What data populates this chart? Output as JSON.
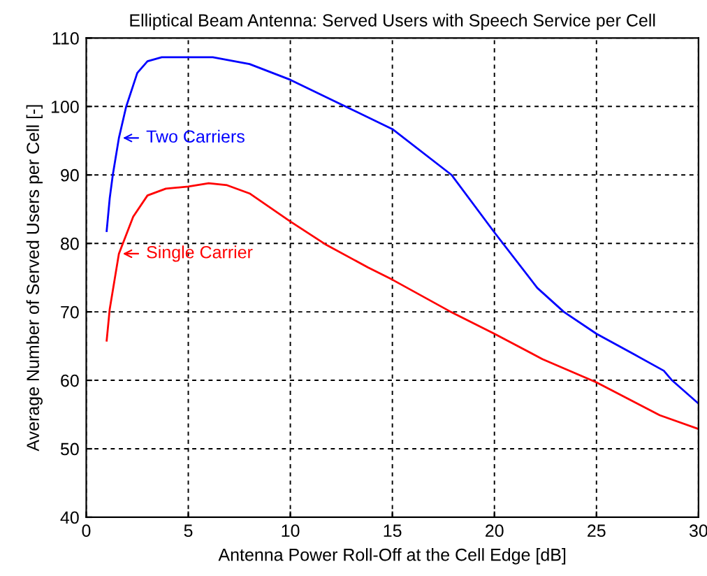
{
  "chart_data": {
    "type": "line",
    "title": "Elliptical Beam Antenna: Served Users with Speech Service per Cell",
    "xlabel": "Antenna Power Roll-Off at the Cell Edge [dB]",
    "ylabel": "Average Number of Served Users per Cell [-]",
    "xlim": [
      0,
      30
    ],
    "ylim": [
      40,
      110
    ],
    "xticks": [
      0,
      5,
      10,
      15,
      20,
      25,
      30
    ],
    "yticks": [
      40,
      50,
      60,
      70,
      80,
      90,
      100,
      110
    ],
    "grid": true,
    "line_style": "solid",
    "marker": "none",
    "legend": "top left",
    "series": [
      {
        "name": "Two Carriers",
        "color": "#0000ff",
        "x": [
          1,
          1.15,
          1.3,
          1.6,
          1.95,
          2.5,
          3,
          3.7,
          6.2,
          8,
          10,
          12.5,
          15,
          17.9,
          20,
          22.1,
          23.4,
          25,
          26.9,
          28.3,
          28.7,
          30
        ],
        "values": [
          81.8,
          86.6,
          90,
          95.4,
          99.9,
          104.9,
          106.6,
          107.2,
          107.2,
          106.2,
          103.9,
          100.3,
          96.7,
          90,
          81.6,
          73.5,
          70,
          66.8,
          63.7,
          61.4,
          60,
          56.6
        ]
      },
      {
        "name": "Single Carrier",
        "color": "#ff0000",
        "x": [
          1,
          1.15,
          1.6,
          2.3,
          3,
          3.9,
          5,
          6,
          6.9,
          8,
          10,
          11.7,
          13.8,
          15,
          17.8,
          20,
          22.35,
          25,
          28.1,
          30
        ],
        "values": [
          65.8,
          70.4,
          78.5,
          83.9,
          87,
          88,
          88.3,
          88.8,
          88.5,
          87.3,
          83.2,
          79.9,
          76.5,
          74.7,
          70.1,
          66.8,
          63.1,
          59.7,
          54.9,
          52.9
        ]
      }
    ]
  }
}
